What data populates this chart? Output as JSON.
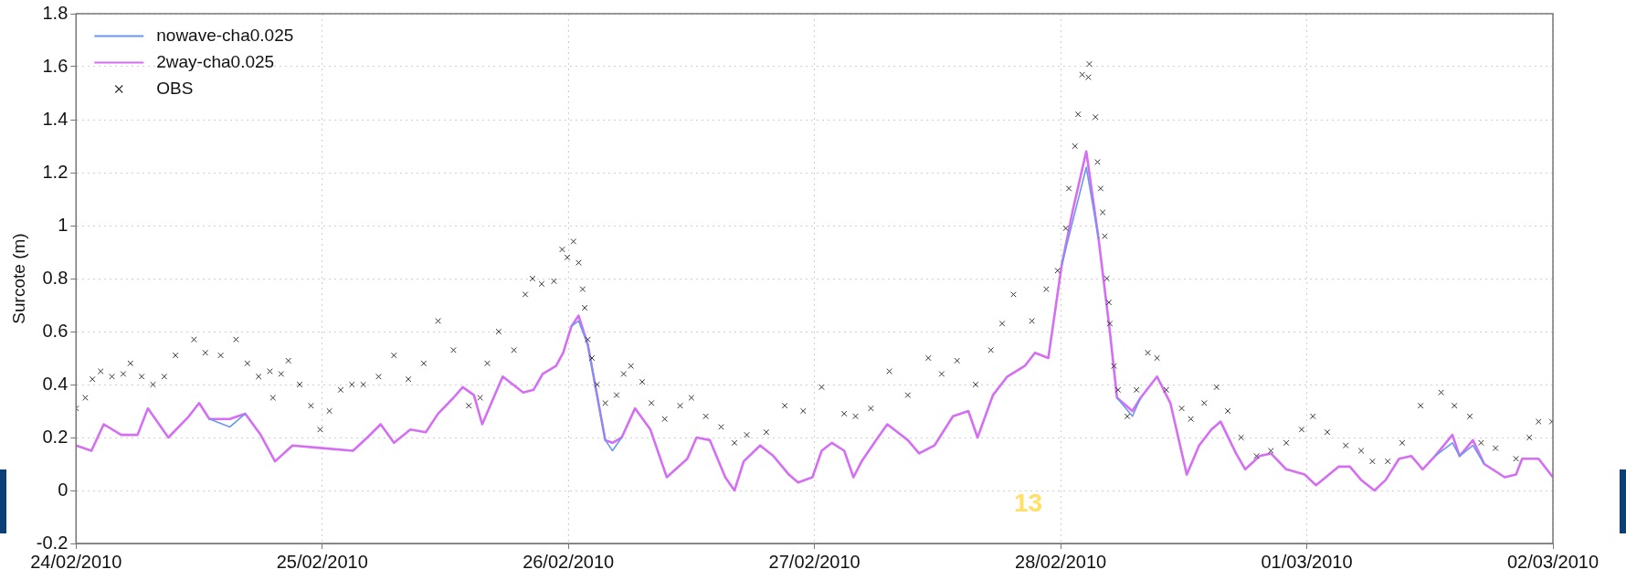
{
  "chart_data": {
    "type": "line",
    "ylabel": "Surcote (m)",
    "xlim": [
      "2010-02-24",
      "2010-03-02"
    ],
    "xticks": [
      {
        "value": "2010-02-24",
        "label": "24/02/2010"
      },
      {
        "value": "2010-02-25",
        "label": "25/02/2010"
      },
      {
        "value": "2010-02-26",
        "label": "26/02/2010"
      },
      {
        "value": "2010-02-27",
        "label": "27/02/2010"
      },
      {
        "value": "2010-02-28",
        "label": "28/02/2010"
      },
      {
        "value": "2010-03-01",
        "label": "01/03/2010"
      },
      {
        "value": "2010-03-02",
        "label": "02/03/2010"
      }
    ],
    "ylim": [
      -0.2,
      1.8
    ],
    "yticks": [
      -0.2,
      0,
      0.2,
      0.4,
      0.6,
      0.8,
      1,
      1.2,
      1.4,
      1.6,
      1.8
    ],
    "grid": true,
    "legend": "top left",
    "marker": "none",
    "line_style": "solid",
    "annotations": [
      "13"
    ],
    "x": [
      "2010-02-24T00:00",
      "2010-02-24T01:30",
      "2010-02-24T02:42",
      "2010-02-24T04:24",
      "2010-02-24T06:00",
      "2010-02-24T07:00",
      "2010-02-24T09:00",
      "2010-02-24T11:00",
      "2010-02-24T12:00",
      "2010-02-24T13:00",
      "2010-02-24T15:00",
      "2010-02-24T16:30",
      "2010-02-24T18:00",
      "2010-02-24T19:24",
      "2010-02-24T21:06",
      "2010-02-25T00:00",
      "2010-02-25T03:00",
      "2010-02-25T04:24",
      "2010-02-25T05:42",
      "2010-02-25T07:00",
      "2010-02-25T08:36",
      "2010-02-25T10:06",
      "2010-02-25T11:18",
      "2010-02-25T12:48",
      "2010-02-25T13:42",
      "2010-02-25T14:48",
      "2010-02-25T15:36",
      "2010-02-25T17:36",
      "2010-02-25T19:36",
      "2010-02-25T20:36",
      "2010-02-25T21:30",
      "2010-02-25T22:48",
      "2010-02-25T23:30",
      "2010-02-26T00:18",
      "2010-02-26T01:00",
      "2010-02-26T01:54",
      "2010-02-26T03:36",
      "2010-02-26T04:18",
      "2010-02-26T05:12",
      "2010-02-26T06:30",
      "2010-02-26T08:00",
      "2010-02-26T09:36",
      "2010-02-26T11:36",
      "2010-02-26T12:30",
      "2010-02-26T13:48",
      "2010-02-26T15:18",
      "2010-02-26T16:12",
      "2010-02-26T17:06",
      "2010-02-26T18:42",
      "2010-02-26T20:00",
      "2010-02-26T21:30",
      "2010-02-26T22:24",
      "2010-02-26T23:48",
      "2010-02-27T00:42",
      "2010-02-27T01:42",
      "2010-02-27T02:54",
      "2010-02-27T03:48",
      "2010-02-27T04:36",
      "2010-02-27T06:00",
      "2010-02-27T07:06",
      "2010-02-27T09:06",
      "2010-02-27T10:12",
      "2010-02-27T11:42",
      "2010-02-27T13:30",
      "2010-02-27T15:00",
      "2010-02-27T15:54",
      "2010-02-27T17:24",
      "2010-02-27T18:48",
      "2010-02-27T20:30",
      "2010-02-27T21:30",
      "2010-02-27T22:48",
      "2010-02-28T00:06",
      "2010-02-28T01:12",
      "2010-02-28T02:30",
      "2010-02-28T03:42",
      "2010-02-28T04:48",
      "2010-02-28T05:30",
      "2010-02-28T07:00",
      "2010-02-28T07:48",
      "2010-02-28T09:24",
      "2010-02-28T10:42",
      "2010-02-28T12:18",
      "2010-02-28T13:30",
      "2010-02-28T14:42",
      "2010-02-28T15:36",
      "2010-02-28T17:06",
      "2010-02-28T18:00",
      "2010-02-28T19:24",
      "2010-02-28T20:30",
      "2010-02-28T22:00",
      "2010-02-28T23:48",
      "2010-03-01T00:54",
      "2010-03-01T03:06",
      "2010-03-01T04:12",
      "2010-03-01T05:18",
      "2010-03-01T06:36",
      "2010-03-01T07:42",
      "2010-03-01T09:00",
      "2010-03-01T10:12",
      "2010-03-01T11:18",
      "2010-03-01T12:30",
      "2010-03-01T14:12",
      "2010-03-01T14:54",
      "2010-03-01T16:12",
      "2010-03-01T17:18",
      "2010-03-01T19:18",
      "2010-03-01T20:24",
      "2010-03-01T21:00",
      "2010-03-01T22:36",
      "2010-03-02T00:00"
    ],
    "series": [
      {
        "name": "nowave-cha0.025",
        "color": "#6c98f0",
        "values": [
          null,
          null,
          null,
          null,
          null,
          null,
          null,
          null,
          null,
          0.27,
          0.24,
          0.29,
          null,
          null,
          null,
          null,
          null,
          null,
          null,
          null,
          null,
          null,
          null,
          null,
          null,
          null,
          null,
          null,
          null,
          null,
          null,
          null,
          null,
          0.62,
          0.64,
          0.55,
          0.19,
          0.15,
          0.2,
          null,
          null,
          null,
          null,
          null,
          null,
          null,
          null,
          null,
          null,
          null,
          null,
          null,
          null,
          null,
          null,
          null,
          null,
          null,
          null,
          null,
          null,
          null,
          null,
          null,
          null,
          null,
          null,
          null,
          null,
          null,
          null,
          0.85,
          1.02,
          1.22,
          0.95,
          null,
          0.35,
          0.28,
          0.35,
          null,
          null,
          null,
          null,
          null,
          null,
          null,
          null,
          null,
          null,
          null,
          null,
          null,
          null,
          null,
          null,
          null,
          null,
          null,
          null,
          null,
          0.13,
          0.18,
          0.13,
          0.17,
          0.1,
          null,
          null,
          null,
          null,
          null
        ]
      },
      {
        "name": "2way-cha0.025",
        "color": "#d56ef5",
        "values": [
          0.17,
          0.15,
          0.25,
          0.21,
          0.21,
          0.31,
          0.2,
          0.28,
          0.33,
          0.27,
          0.27,
          0.29,
          0.21,
          0.11,
          0.17,
          0.16,
          0.15,
          0.2,
          0.25,
          0.18,
          0.23,
          0.22,
          0.29,
          0.35,
          0.39,
          0.36,
          0.25,
          0.43,
          0.37,
          0.38,
          0.44,
          0.47,
          0.52,
          0.62,
          0.66,
          0.55,
          0.19,
          0.18,
          0.2,
          0.31,
          0.23,
          0.05,
          0.12,
          0.2,
          0.19,
          0.05,
          0.0,
          0.11,
          0.17,
          0.13,
          0.06,
          0.03,
          0.05,
          0.15,
          0.18,
          0.15,
          0.05,
          0.11,
          0.19,
          0.25,
          0.19,
          0.14,
          0.17,
          0.28,
          0.3,
          0.2,
          0.36,
          0.43,
          0.47,
          0.52,
          0.5,
          0.85,
          1.06,
          1.28,
          0.95,
          0.6,
          0.35,
          0.3,
          0.35,
          0.43,
          0.33,
          0.06,
          0.17,
          0.23,
          0.26,
          0.14,
          0.08,
          0.13,
          0.14,
          0.08,
          0.06,
          0.02,
          0.09,
          0.09,
          0.04,
          0.0,
          0.04,
          0.12,
          0.13,
          0.08,
          0.13,
          0.21,
          0.13,
          0.19,
          0.1,
          0.05,
          0.06,
          0.12,
          0.12,
          0.05
        ]
      },
      {
        "name": "OBS",
        "type": "scatter",
        "color": "#333333",
        "marker": "cross",
        "x": [
          "2010-02-24T00:00",
          "2010-02-24T00:54",
          "2010-02-24T01:36",
          "2010-02-24T02:24",
          "2010-02-24T03:30",
          "2010-02-24T04:36",
          "2010-02-24T05:18",
          "2010-02-24T06:24",
          "2010-02-24T07:30",
          "2010-02-24T08:36",
          "2010-02-24T09:42",
          "2010-02-24T11:30",
          "2010-02-24T12:36",
          "2010-02-24T14:06",
          "2010-02-24T15:36",
          "2010-02-24T16:42",
          "2010-02-24T17:48",
          "2010-02-24T18:54",
          "2010-02-24T19:12",
          "2010-02-24T20:00",
          "2010-02-24T20:42",
          "2010-02-24T21:48",
          "2010-02-24T22:54",
          "2010-02-24T23:48",
          "2010-02-25T00:42",
          "2010-02-25T01:48",
          "2010-02-25T02:54",
          "2010-02-25T04:00",
          "2010-02-25T05:30",
          "2010-02-25T07:00",
          "2010-02-25T08:24",
          "2010-02-25T09:54",
          "2010-02-25T11:18",
          "2010-02-25T12:48",
          "2010-02-25T14:18",
          "2010-02-25T15:24",
          "2010-02-25T16:06",
          "2010-02-25T17:12",
          "2010-02-25T18:42",
          "2010-02-25T19:48",
          "2010-02-25T20:30",
          "2010-02-25T21:24",
          "2010-02-25T22:36",
          "2010-02-25T23:24",
          "2010-02-25T23:54",
          "2010-02-26T00:30",
          "2010-02-26T01:00",
          "2010-02-26T01:24",
          "2010-02-26T01:36",
          "2010-02-26T01:54",
          "2010-02-26T02:18",
          "2010-02-26T02:48",
          "2010-02-26T03:36",
          "2010-02-26T04:42",
          "2010-02-26T05:24",
          "2010-02-26T06:06",
          "2010-02-26T07:12",
          "2010-02-26T08:06",
          "2010-02-26T09:24",
          "2010-02-26T10:54",
          "2010-02-26T12:00",
          "2010-02-26T13:24",
          "2010-02-26T14:54",
          "2010-02-26T16:12",
          "2010-02-26T17:24",
          "2010-02-26T19:18",
          "2010-02-26T21:06",
          "2010-02-26T22:54",
          "2010-02-27T00:42",
          "2010-02-27T02:54",
          "2010-02-27T04:00",
          "2010-02-27T05:30",
          "2010-02-27T07:18",
          "2010-02-27T09:06",
          "2010-02-27T11:06",
          "2010-02-27T12:24",
          "2010-02-27T13:54",
          "2010-02-27T15:42",
          "2010-02-27T17:12",
          "2010-02-27T18:18",
          "2010-02-27T19:24",
          "2010-02-27T21:12",
          "2010-02-27T22:36",
          "2010-02-27T23:42",
          "2010-02-28T00:30",
          "2010-02-28T00:48",
          "2010-02-28T01:24",
          "2010-02-28T01:42",
          "2010-02-28T02:06",
          "2010-02-28T02:42",
          "2010-02-28T02:48",
          "2010-02-28T03:24",
          "2010-02-28T03:36",
          "2010-02-28T03:54",
          "2010-02-28T04:06",
          "2010-02-28T04:18",
          "2010-02-28T04:30",
          "2010-02-28T04:42",
          "2010-02-28T04:48",
          "2010-02-28T05:12",
          "2010-02-28T05:36",
          "2010-02-28T06:30",
          "2010-02-28T07:24",
          "2010-02-28T08:30",
          "2010-02-28T09:24",
          "2010-02-28T10:18",
          "2010-02-28T11:48",
          "2010-02-28T12:42",
          "2010-02-28T14:00",
          "2010-02-28T15:12",
          "2010-02-28T16:18",
          "2010-02-28T17:36",
          "2010-02-28T19:06",
          "2010-02-28T20:30",
          "2010-02-28T22:00",
          "2010-02-28T23:30",
          "2010-03-01T00:36",
          "2010-03-01T02:00",
          "2010-03-01T03:48",
          "2010-03-01T05:18",
          "2010-03-01T06:24",
          "2010-03-01T07:54",
          "2010-03-01T09:18",
          "2010-03-01T11:06",
          "2010-03-01T13:06",
          "2010-03-01T14:24",
          "2010-03-01T15:54",
          "2010-03-01T17:00",
          "2010-03-01T18:24",
          "2010-03-01T20:24",
          "2010-03-01T21:42",
          "2010-03-01T22:36",
          "2010-03-01T23:54"
        ],
        "values": [
          0.31,
          0.35,
          0.42,
          0.45,
          0.43,
          0.44,
          0.48,
          0.43,
          0.4,
          0.43,
          0.51,
          0.57,
          0.52,
          0.51,
          0.57,
          0.48,
          0.43,
          0.45,
          0.35,
          0.44,
          0.49,
          0.4,
          0.32,
          0.23,
          0.3,
          0.38,
          0.4,
          0.4,
          0.43,
          0.51,
          0.42,
          0.48,
          0.64,
          0.53,
          0.32,
          0.35,
          0.48,
          0.6,
          0.53,
          0.74,
          0.8,
          0.78,
          0.79,
          0.91,
          0.88,
          0.94,
          0.86,
          0.76,
          0.69,
          0.57,
          0.5,
          0.4,
          0.33,
          0.36,
          0.44,
          0.47,
          0.41,
          0.33,
          0.27,
          0.32,
          0.35,
          0.28,
          0.24,
          0.18,
          0.21,
          0.22,
          0.32,
          0.3,
          0.39,
          0.29,
          0.28,
          0.31,
          0.45,
          0.36,
          0.5,
          0.44,
          0.49,
          0.4,
          0.53,
          0.63,
          0.74,
          0.64,
          0.76,
          0.83,
          0.99,
          1.14,
          1.3,
          1.42,
          1.57,
          1.56,
          1.61,
          1.41,
          1.24,
          1.14,
          1.05,
          0.96,
          0.8,
          0.71,
          0.63,
          0.47,
          0.38,
          0.28,
          0.38,
          0.52,
          0.5,
          0.38,
          0.31,
          0.27,
          0.33,
          0.39,
          0.3,
          0.2,
          0.13,
          0.15,
          0.18,
          0.23,
          0.28,
          0.22,
          0.17,
          0.15,
          0.11,
          0.11,
          0.18,
          0.32,
          0.37,
          0.32,
          0.28,
          0.18,
          0.16,
          0.12,
          0.2,
          0.26,
          0.26
        ]
      }
    ]
  }
}
